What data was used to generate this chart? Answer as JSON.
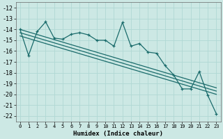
{
  "title": "",
  "xlabel": "Humidex (Indice chaleur)",
  "bg_color": "#cce8e4",
  "grid_color": "#b0d8d4",
  "line_color": "#1a6b6b",
  "xlim": [
    -0.5,
    23.5
  ],
  "ylim": [
    -22.5,
    -11.5
  ],
  "xticks": [
    0,
    1,
    2,
    3,
    4,
    5,
    6,
    7,
    8,
    9,
    10,
    11,
    12,
    13,
    14,
    15,
    16,
    17,
    18,
    19,
    20,
    21,
    22,
    23
  ],
  "yticks": [
    -22,
    -21,
    -20,
    -19,
    -18,
    -17,
    -16,
    -15,
    -14,
    -13,
    -12
  ],
  "line1_x": [
    0,
    1,
    2,
    3,
    4,
    5,
    6,
    7,
    8,
    9,
    10,
    11,
    12,
    13,
    14,
    15,
    16,
    17,
    18,
    19,
    20,
    21,
    22,
    23
  ],
  "line1_y": [
    -14.0,
    -16.4,
    -14.2,
    -13.3,
    -14.8,
    -14.9,
    -14.45,
    -14.3,
    -14.5,
    -15.0,
    -15.0,
    -15.55,
    -13.35,
    -15.55,
    -15.3,
    -16.1,
    -16.2,
    -17.35,
    -18.2,
    -19.5,
    -19.5,
    -17.9,
    -20.1,
    -21.8
  ],
  "trend1_x": [
    0,
    23
  ],
  "trend1_y": [
    -14.0,
    -19.4
  ],
  "trend2_x": [
    0,
    23
  ],
  "trend2_y": [
    -14.3,
    -19.7
  ],
  "trend3_x": [
    0,
    23
  ],
  "trend3_y": [
    -14.6,
    -20.0
  ]
}
